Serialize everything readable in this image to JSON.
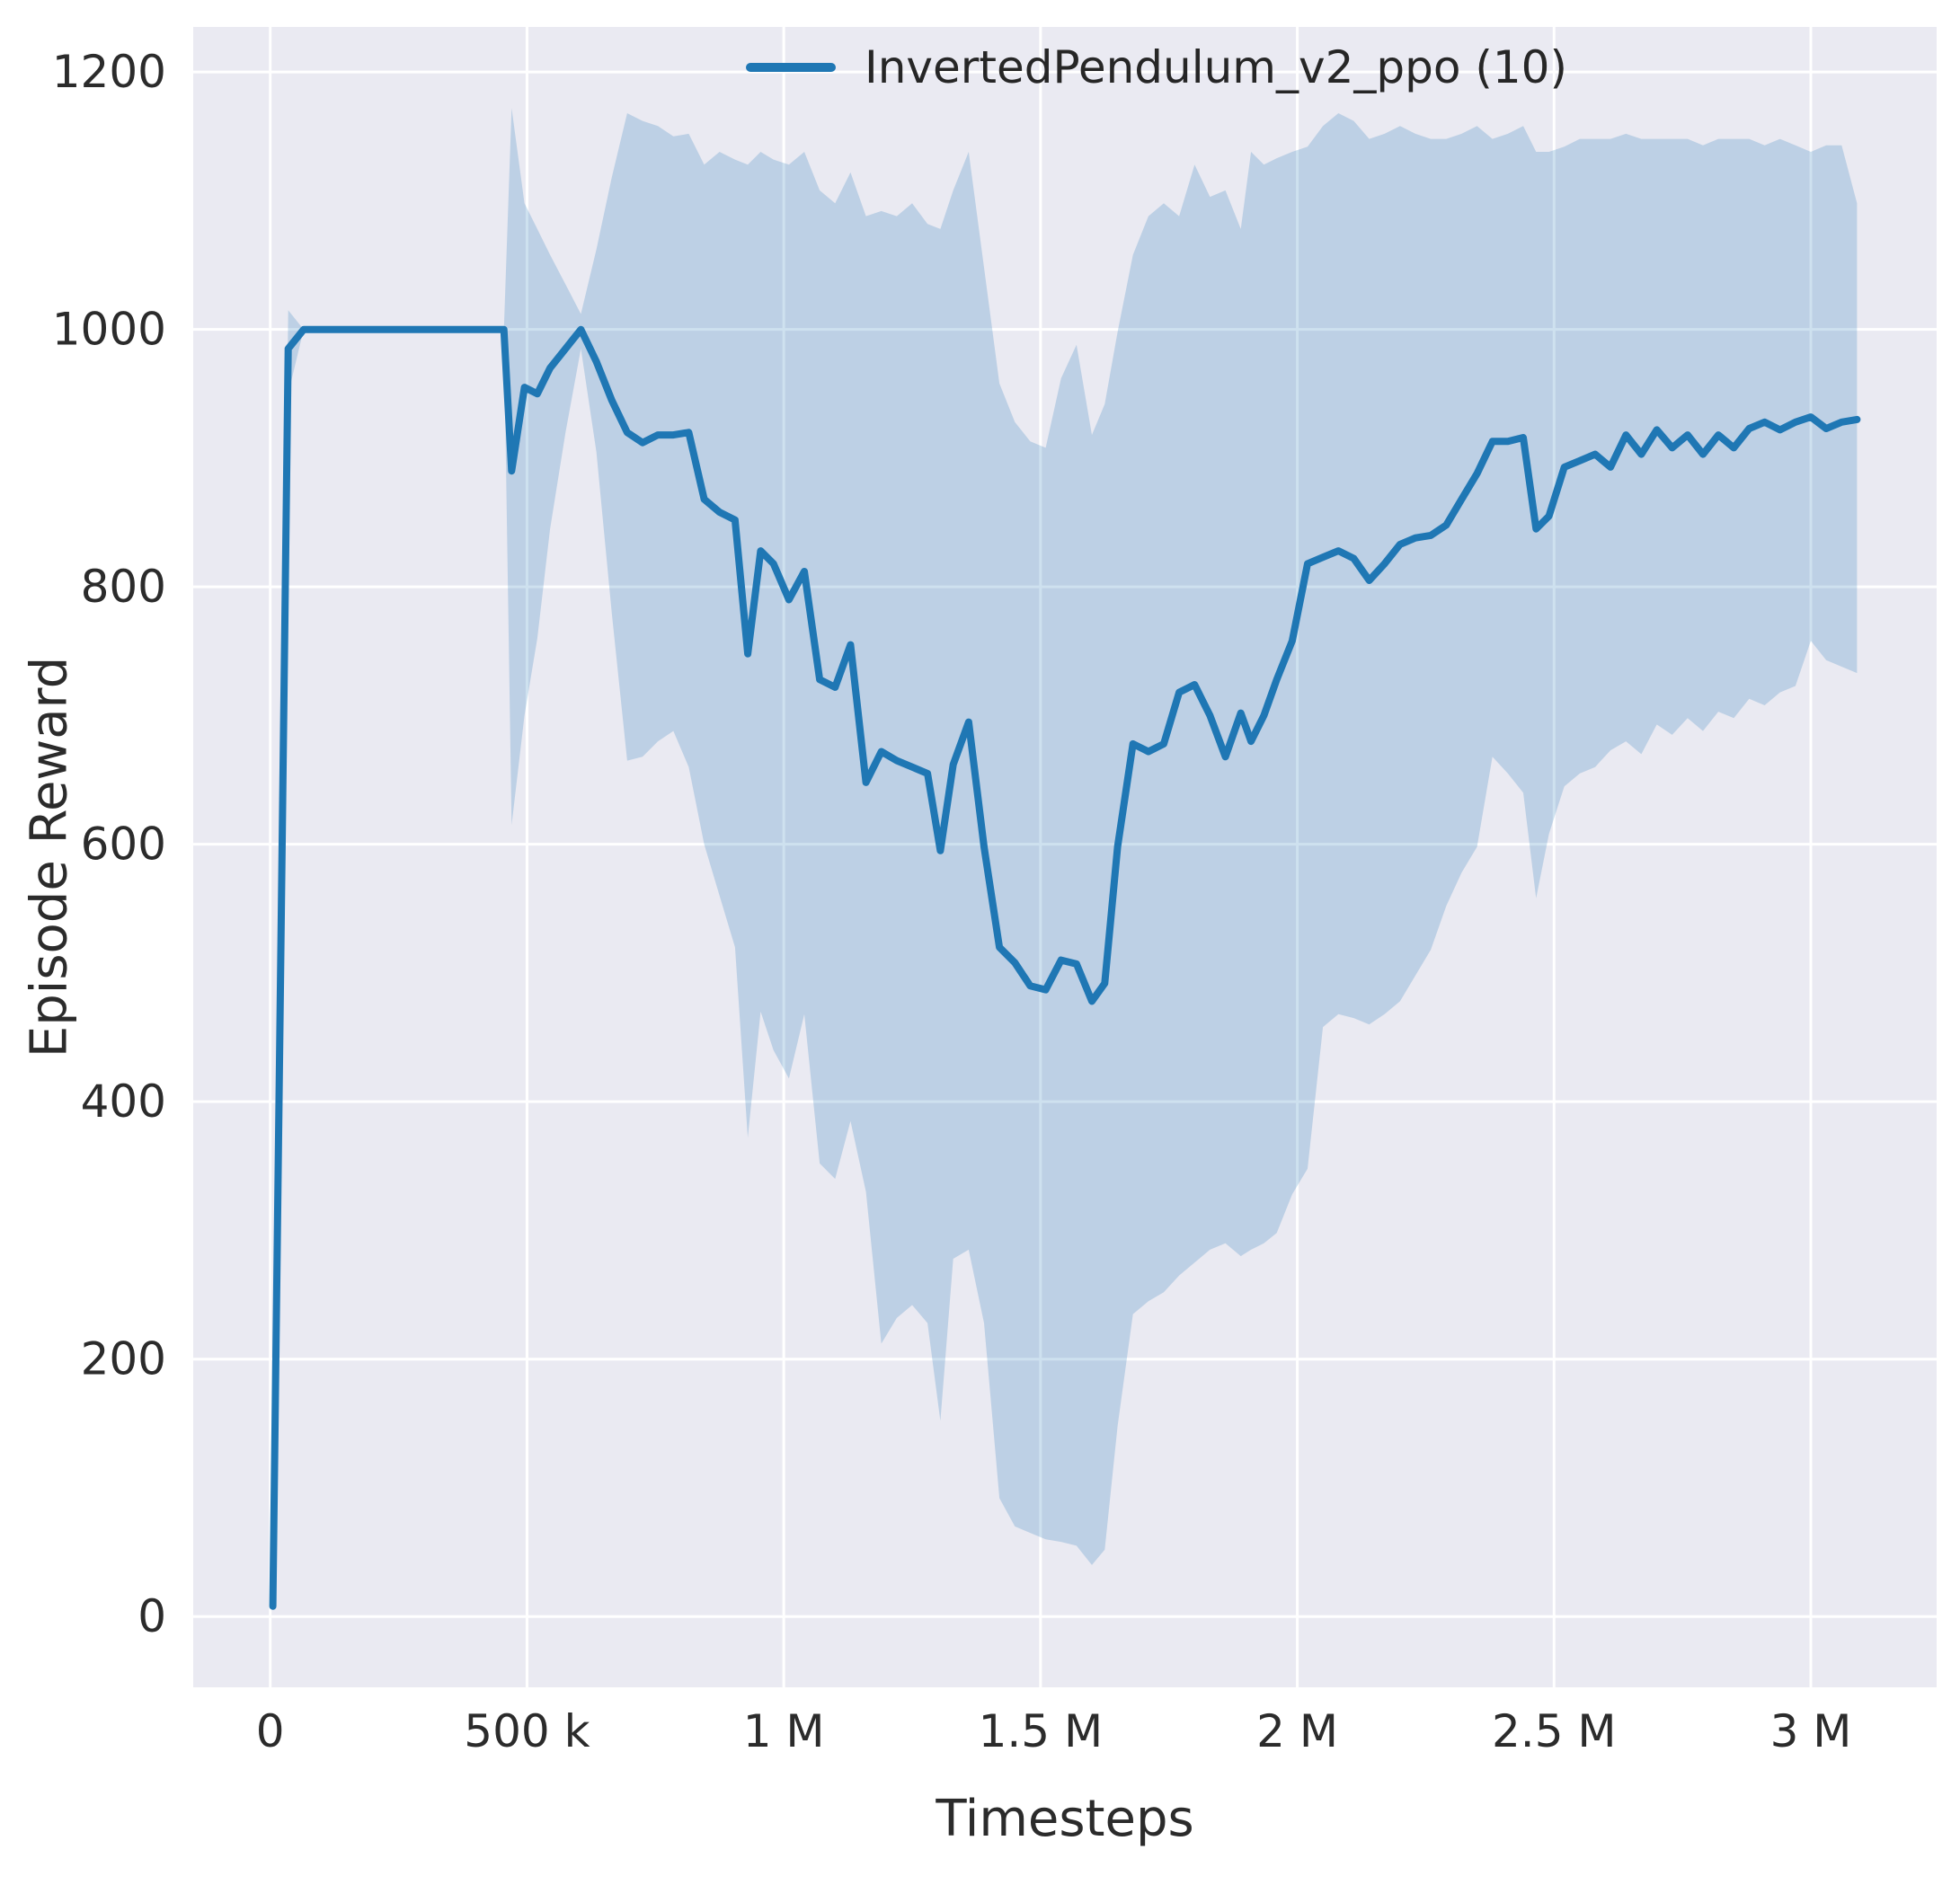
{
  "chart_data": {
    "type": "line",
    "title": "",
    "xlabel": "Timesteps",
    "ylabel": "Episode Reward",
    "grid": true,
    "plot_background": "#eaeaf2",
    "grid_color": "#ffffff",
    "line_color": "#1f77b4",
    "band_color": "#1f77b4",
    "band_opacity": 0.22,
    "text_color": "#2b2b2b",
    "xlim": [
      -150000,
      3245000
    ],
    "ylim": [
      -55,
      1235
    ],
    "xticks": [
      0,
      500000,
      1000000,
      1500000,
      2000000,
      2500000,
      3000000
    ],
    "xtick_labels": [
      "0",
      "500 k",
      "1 M",
      "1.5 M",
      "2 M",
      "2.5 M",
      "3 M"
    ],
    "yticks": [
      0,
      200,
      400,
      600,
      800,
      1000,
      1200
    ],
    "ytick_labels": [
      "0",
      "200",
      "400",
      "600",
      "800",
      "1000",
      "1200"
    ],
    "legend": [
      {
        "label": "InvertedPendulum_v2_ppo (10)",
        "color": "#1f77b4"
      }
    ],
    "legend_position": "upper right (inside plot)",
    "series": [
      {
        "name": "InvertedPendulum_v2_ppo (10)",
        "x": [
          5000,
          35000,
          65000,
          95000,
          125000,
          155000,
          185000,
          215000,
          245000,
          275000,
          305000,
          335000,
          365000,
          395000,
          425000,
          455000,
          470000,
          495000,
          520000,
          545000,
          575000,
          605000,
          635000,
          665000,
          695000,
          725000,
          755000,
          785000,
          815000,
          845000,
          875000,
          905000,
          930000,
          955000,
          980000,
          1010000,
          1040000,
          1070000,
          1100000,
          1130000,
          1160000,
          1190000,
          1220000,
          1250000,
          1280000,
          1305000,
          1330000,
          1360000,
          1390000,
          1420000,
          1450000,
          1480000,
          1510000,
          1540000,
          1570000,
          1600000,
          1625000,
          1650000,
          1680000,
          1710000,
          1740000,
          1770000,
          1800000,
          1830000,
          1860000,
          1890000,
          1910000,
          1935000,
          1960000,
          1990000,
          2020000,
          2050000,
          2080000,
          2110000,
          2140000,
          2170000,
          2200000,
          2230000,
          2260000,
          2290000,
          2320000,
          2350000,
          2380000,
          2410000,
          2440000,
          2465000,
          2490000,
          2520000,
          2550000,
          2580000,
          2610000,
          2640000,
          2670000,
          2700000,
          2730000,
          2760000,
          2790000,
          2820000,
          2850000,
          2880000,
          2910000,
          2940000,
          2970000,
          3000000,
          3030000,
          3060000,
          3090000
        ],
        "mean": [
          8,
          985,
          1000,
          1000,
          1000,
          1000,
          1000,
          1000,
          1000,
          1000,
          1000,
          1000,
          1000,
          1000,
          1000,
          1000,
          890,
          955,
          950,
          970,
          985,
          1000,
          975,
          945,
          920,
          912,
          918,
          918,
          920,
          868,
          858,
          852,
          748,
          828,
          818,
          790,
          812,
          728,
          722,
          755,
          648,
          672,
          665,
          660,
          655,
          595,
          662,
          695,
          598,
          520,
          508,
          490,
          487,
          510,
          507,
          478,
          492,
          598,
          678,
          672,
          678,
          718,
          724,
          700,
          668,
          702,
          680,
          700,
          728,
          758,
          818,
          823,
          828,
          822,
          805,
          818,
          833,
          838,
          840,
          848,
          868,
          888,
          913,
          913,
          916,
          845,
          855,
          893,
          898,
          903,
          893,
          918,
          903,
          922,
          908,
          918,
          903,
          918,
          908,
          923,
          928,
          922,
          928,
          932,
          923,
          928,
          930
        ],
        "lower": [
          5,
          950,
          1000,
          1000,
          1000,
          1000,
          1000,
          1000,
          1000,
          1000,
          1000,
          1000,
          1000,
          1000,
          1000,
          1000,
          615,
          700,
          760,
          845,
          920,
          985,
          905,
          780,
          665,
          668,
          680,
          688,
          660,
          600,
          560,
          520,
          372,
          470,
          440,
          418,
          468,
          352,
          340,
          385,
          330,
          212,
          232,
          242,
          228,
          152,
          278,
          285,
          228,
          92,
          70,
          65,
          60,
          58,
          55,
          40,
          52,
          148,
          235,
          245,
          252,
          265,
          275,
          285,
          290,
          280,
          285,
          290,
          298,
          328,
          348,
          458,
          468,
          465,
          460,
          468,
          478,
          498,
          518,
          552,
          578,
          598,
          668,
          655,
          640,
          558,
          608,
          645,
          655,
          660,
          673,
          680,
          670,
          693,
          685,
          698,
          688,
          703,
          698,
          713,
          708,
          718,
          723,
          758,
          743,
          738,
          733
        ],
        "upper": [
          12,
          1015,
          1000,
          1000,
          1000,
          1000,
          1000,
          1000,
          1000,
          1000,
          1000,
          1000,
          1000,
          1000,
          1000,
          1000,
          1172,
          1098,
          1078,
          1058,
          1035,
          1012,
          1062,
          1118,
          1168,
          1162,
          1158,
          1150,
          1152,
          1128,
          1138,
          1132,
          1128,
          1138,
          1132,
          1128,
          1138,
          1108,
          1098,
          1122,
          1088,
          1092,
          1088,
          1098,
          1082,
          1078,
          1108,
          1138,
          1048,
          958,
          928,
          913,
          908,
          962,
          988,
          918,
          942,
          998,
          1058,
          1088,
          1098,
          1088,
          1128,
          1103,
          1108,
          1078,
          1138,
          1128,
          1133,
          1138,
          1142,
          1158,
          1168,
          1162,
          1148,
          1152,
          1158,
          1152,
          1148,
          1148,
          1152,
          1158,
          1148,
          1152,
          1158,
          1138,
          1138,
          1142,
          1148,
          1148,
          1148,
          1152,
          1148,
          1148,
          1148,
          1148,
          1143,
          1148,
          1148,
          1148,
          1143,
          1148,
          1143,
          1138,
          1143,
          1143,
          1098
        ]
      }
    ]
  }
}
